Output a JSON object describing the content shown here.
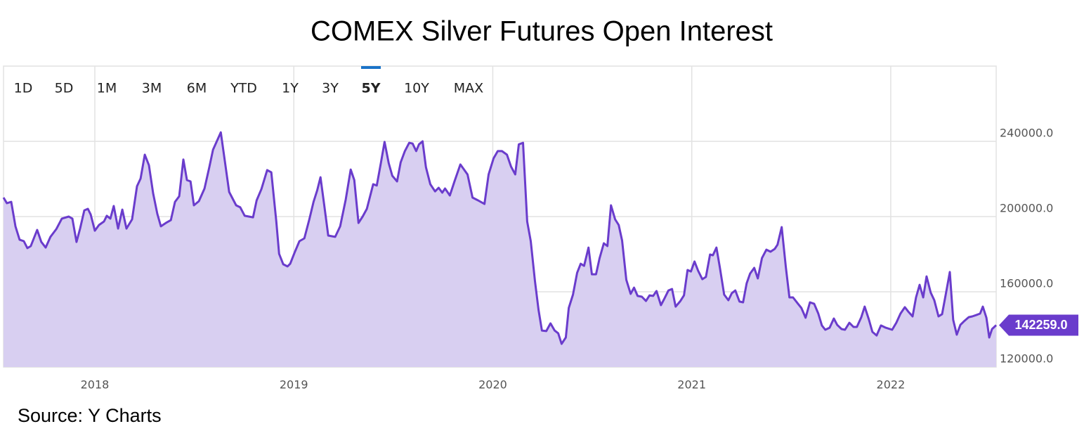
{
  "chart_data": {
    "type": "area",
    "title": "COMEX Silver Futures Open Interest",
    "source": "Source: Y Charts",
    "range_selector": {
      "options": [
        "1D",
        "5D",
        "1M",
        "3M",
        "6M",
        "YTD",
        "1Y",
        "3Y",
        "5Y",
        "10Y",
        "MAX"
      ],
      "selected_index": 8
    },
    "color": "#6a3ccc",
    "fill_color": "#d8cff1",
    "grid": true,
    "xlim": [
      2017.541,
      2022.53
    ],
    "xticks": [
      2018,
      2019,
      2020,
      2021,
      2022
    ],
    "ylim": [
      120000,
      280000
    ],
    "yticks": [
      {
        "value": 120000,
        "label": "120000.0"
      },
      {
        "value": 160000,
        "label": "160000.0"
      },
      {
        "value": 200000,
        "label": "200000.0"
      },
      {
        "value": 240000,
        "label": "240000.0"
      }
    ],
    "annotations": [
      {
        "x": 2022.53,
        "y": 142259,
        "label": "142259.0"
      }
    ],
    "x": [
      2017.541,
      2017.558,
      2017.58,
      2017.601,
      2017.622,
      2017.643,
      2017.661,
      2017.678,
      2017.71,
      2017.731,
      2017.753,
      2017.777,
      2017.806,
      2017.834,
      2017.869,
      2017.887,
      2017.908,
      2017.926,
      2017.947,
      2017.965,
      2017.979,
      2018.0,
      2018.021,
      2018.046,
      2018.06,
      2018.078,
      2018.095,
      2018.117,
      2018.138,
      2018.159,
      2018.187,
      2018.212,
      2018.23,
      2018.251,
      2018.272,
      2018.293,
      2018.314,
      2018.332,
      2018.357,
      2018.382,
      2018.403,
      2018.424,
      2018.445,
      2018.463,
      2018.481,
      2018.498,
      2018.523,
      2018.551,
      2018.576,
      2018.594,
      2018.633,
      2018.654,
      2018.675,
      2018.71,
      2018.731,
      2018.753,
      2018.795,
      2018.813,
      2018.837,
      2018.866,
      2018.887,
      2018.912,
      2018.926,
      2018.947,
      2018.968,
      2018.982,
      2019.004,
      2019.028,
      2019.053,
      2019.078,
      2019.099,
      2019.117,
      2019.134,
      2019.152,
      2019.173,
      2019.208,
      2019.233,
      2019.261,
      2019.286,
      2019.304,
      2019.325,
      2019.346,
      2019.367,
      2019.399,
      2019.417,
      2019.438,
      2019.456,
      2019.477,
      2019.495,
      2019.519,
      2019.537,
      2019.558,
      2019.58,
      2019.597,
      2019.615,
      2019.629,
      2019.647,
      2019.664,
      2019.686,
      2019.71,
      2019.728,
      2019.746,
      2019.76,
      2019.784,
      2019.809,
      2019.837,
      2019.873,
      2019.898,
      2019.926,
      2019.958,
      2019.979,
      2020.004,
      2020.025,
      2020.046,
      2020.071,
      2020.092,
      2020.113,
      2020.131,
      2020.152,
      2020.173,
      2020.191,
      2020.212,
      2020.23,
      2020.247,
      2020.269,
      2020.29,
      2020.311,
      2020.329,
      2020.346,
      2020.367,
      2020.382,
      2020.403,
      2020.424,
      2020.442,
      2020.459,
      2020.481,
      2020.498,
      2020.519,
      2020.537,
      2020.558,
      2020.576,
      2020.594,
      2020.615,
      2020.633,
      2020.65,
      2020.671,
      2020.693,
      2020.71,
      2020.728,
      2020.749,
      2020.77,
      2020.788,
      2020.806,
      2020.823,
      2020.845,
      2020.862,
      2020.883,
      2020.901,
      2020.919,
      2020.943,
      2020.961,
      2020.979,
      2020.996,
      2021.014,
      2021.032,
      2021.053,
      2021.071,
      2021.092,
      2021.106,
      2021.124,
      2021.141,
      2021.163,
      2021.184,
      2021.201,
      2021.219,
      2021.24,
      2021.258,
      2021.276,
      2021.293,
      2021.314,
      2021.332,
      2021.353,
      2021.375,
      2021.396,
      2021.417,
      2021.431,
      2021.452,
      2021.473,
      2021.491,
      2021.509,
      2021.534,
      2021.551,
      2021.572,
      2021.594,
      2021.615,
      2021.636,
      2021.654,
      2021.671,
      2021.693,
      2021.714,
      2021.731,
      2021.753,
      2021.77,
      2021.792,
      2021.813,
      2021.83,
      2021.852,
      2021.869,
      2021.89,
      2021.908,
      2021.929,
      2021.951,
      2021.975,
      2022.007,
      2022.028,
      2022.049,
      2022.071,
      2022.088,
      2022.11,
      2022.127,
      2022.145,
      2022.163,
      2022.18,
      2022.201,
      2022.219,
      2022.24,
      2022.258,
      2022.279,
      2022.297,
      2022.314,
      2022.332,
      2022.35,
      2022.371,
      2022.392,
      2022.41,
      2022.431,
      2022.449,
      2022.463,
      2022.481,
      2022.495,
      2022.509,
      2022.53
    ],
    "values": [
      210100,
      207100,
      207800,
      194800,
      187700,
      186900,
      183200,
      184300,
      192900,
      186500,
      183500,
      189200,
      193300,
      198900,
      200000,
      198900,
      186500,
      193600,
      203300,
      204100,
      201100,
      192500,
      195500,
      197400,
      200400,
      198900,
      205600,
      193600,
      203700,
      193600,
      198500,
      216100,
      220200,
      232900,
      227300,
      212300,
      201500,
      194800,
      196600,
      198100,
      207800,
      210800,
      230300,
      219400,
      218700,
      206000,
      208200,
      214900,
      226500,
      235500,
      244800,
      229100,
      213100,
      206000,
      204900,
      200400,
      199600,
      208600,
      214600,
      224700,
      223500,
      197400,
      180200,
      174600,
      173500,
      174900,
      180900,
      186900,
      188400,
      198500,
      207800,
      213800,
      220900,
      206700,
      189900,
      189200,
      194800,
      209000,
      225000,
      219400,
      196600,
      200000,
      204100,
      217200,
      216500,
      228800,
      239700,
      228400,
      221700,
      218700,
      228800,
      234800,
      239200,
      238800,
      234800,
      238400,
      240000,
      226200,
      217200,
      213400,
      215300,
      212700,
      214900,
      211200,
      219100,
      227700,
      222400,
      210100,
      208600,
      206700,
      222400,
      231000,
      234800,
      234800,
      232900,
      226500,
      222400,
      238400,
      239200,
      197400,
      186900,
      165600,
      150300,
      139400,
      139100,
      143200,
      139400,
      137900,
      132300,
      135700,
      151400,
      158500,
      170100,
      174900,
      173800,
      183500,
      169300,
      169300,
      177900,
      185800,
      184300,
      206000,
      198500,
      195500,
      187300,
      166400,
      158900,
      162200,
      157800,
      157400,
      155100,
      158100,
      157800,
      160400,
      152900,
      156300,
      160700,
      161500,
      152100,
      155100,
      158100,
      171600,
      170800,
      176100,
      171200,
      166700,
      167900,
      179800,
      179400,
      183500,
      173100,
      158500,
      155500,
      159200,
      160700,
      154800,
      154400,
      164500,
      169700,
      172700,
      167100,
      177900,
      182400,
      181300,
      182800,
      185000,
      194400,
      173100,
      157000,
      157000,
      153600,
      151400,
      146200,
      154400,
      153600,
      148400,
      142100,
      139800,
      140900,
      145800,
      142400,
      140200,
      139800,
      143500,
      141300,
      141300,
      146500,
      152100,
      145400,
      138700,
      136800,
      142100,
      140900,
      139800,
      143500,
      148400,
      151800,
      149500,
      146900,
      157000,
      163700,
      157000,
      168200,
      159600,
      155500,
      146900,
      148100,
      160000,
      170500,
      145100,
      137200,
      142400,
      144600,
      146500,
      146900,
      147700,
      148400,
      152100,
      146200,
      135700,
      140200,
      142259
    ]
  }
}
